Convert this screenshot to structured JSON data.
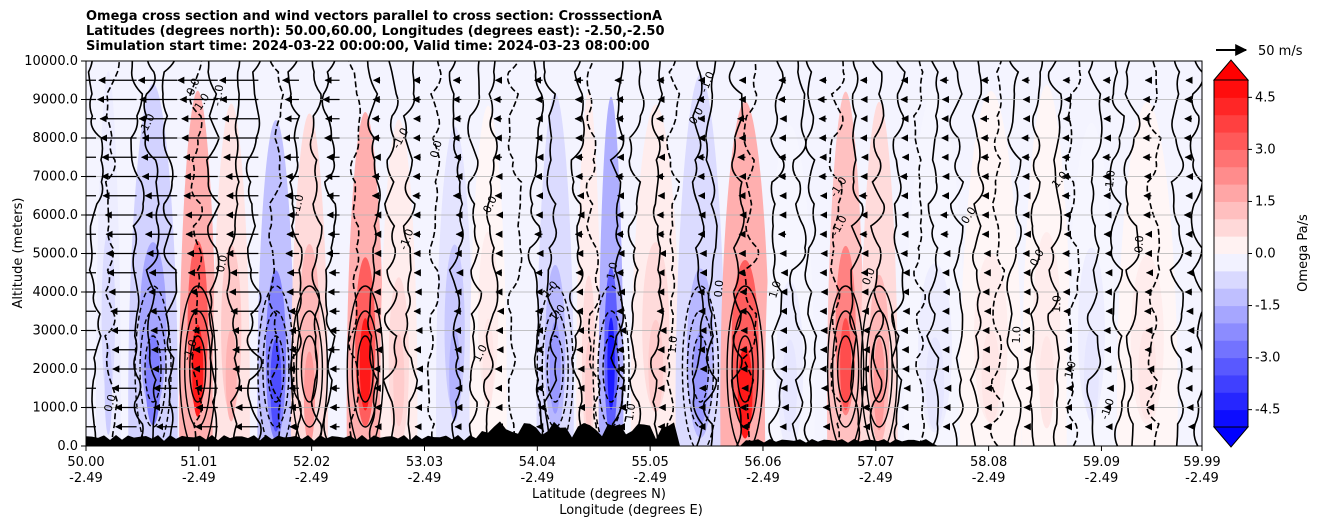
{
  "chart_data": {
    "type": "heatmap",
    "title_lines": [
      "Omega cross section and wind vectors parallel to cross section: CrosssectionA",
      "Latitudes (degrees north): 50.00,60.00, Longitudes (degrees east): -2.50,-2.50",
      "Simulation start time: 2024-03-22 00:00:00, Valid time: 2024-03-23 08:00:00"
    ],
    "xlabel_line1": "Latitude (degrees N)",
    "xlabel_line2": "Longitude (degrees E)",
    "ylabel": "Altitude (meters)",
    "x_ticks": [
      {
        "lat": "50.00",
        "lon": "-2.49",
        "value": 50.0
      },
      {
        "lat": "51.01",
        "lon": "-2.49",
        "value": 51.01
      },
      {
        "lat": "52.02",
        "lon": "-2.49",
        "value": 52.02
      },
      {
        "lat": "53.03",
        "lon": "-2.49",
        "value": 53.03
      },
      {
        "lat": "54.04",
        "lon": "-2.49",
        "value": 54.04
      },
      {
        "lat": "55.05",
        "lon": "-2.49",
        "value": 55.05
      },
      {
        "lat": "56.06",
        "lon": "-2.49",
        "value": 56.06
      },
      {
        "lat": "57.07",
        "lon": "-2.49",
        "value": 57.07
      },
      {
        "lat": "58.08",
        "lon": "-2.49",
        "value": 58.08
      },
      {
        "lat": "59.09",
        "lon": "-2.49",
        "value": 59.09
      },
      {
        "lat": "59.99",
        "lon": "-2.49",
        "value": 59.99
      }
    ],
    "y_ticks": [
      "0.0",
      "1000.0",
      "2000.0",
      "3000.0",
      "4000.0",
      "5000.0",
      "6000.0",
      "7000.0",
      "8000.0",
      "9000.0",
      "10000.0"
    ],
    "xlim": [
      50.0,
      59.99
    ],
    "ylim": [
      0,
      10000
    ],
    "grid": "horizontal",
    "colorbar": {
      "label": "Omega Pa/s",
      "ticks": [
        "4.5",
        "3.0",
        "1.5",
        "0.0",
        "-1.5",
        "-3.0",
        "-4.5"
      ],
      "range": [
        -5.0,
        5.0
      ],
      "colormap": "bwr",
      "extend": "both"
    },
    "vector_key": {
      "label": "50 m/s"
    },
    "contour_labels": [
      "1.0",
      "-1.0",
      "0.0"
    ],
    "omega_bands": [
      {
        "lat": 50.2,
        "omega": -1.0
      },
      {
        "lat": 50.6,
        "omega": -2.5
      },
      {
        "lat": 51.0,
        "omega": 4.5
      },
      {
        "lat": 51.3,
        "omega": 1.5
      },
      {
        "lat": 51.7,
        "omega": -3.5
      },
      {
        "lat": 52.0,
        "omega": 2.0
      },
      {
        "lat": 52.5,
        "omega": 4.5
      },
      {
        "lat": 52.8,
        "omega": 1.0
      },
      {
        "lat": 53.3,
        "omega": -1.5
      },
      {
        "lat": 53.6,
        "omega": 0.5
      },
      {
        "lat": 54.2,
        "omega": -2.0
      },
      {
        "lat": 54.5,
        "omega": 1.0
      },
      {
        "lat": 54.7,
        "omega": -4.5
      },
      {
        "lat": 55.1,
        "omega": 1.0
      },
      {
        "lat": 55.5,
        "omega": -2.0
      },
      {
        "lat": 55.9,
        "omega": 4.5
      },
      {
        "lat": 56.3,
        "omega": -0.5
      },
      {
        "lat": 56.8,
        "omega": 3.5
      },
      {
        "lat": 57.1,
        "omega": 2.0
      },
      {
        "lat": 57.6,
        "omega": -0.5
      },
      {
        "lat": 58.1,
        "omega": 0.5
      },
      {
        "lat": 58.6,
        "omega": 0.5
      },
      {
        "lat": 59.0,
        "omega": -0.5
      },
      {
        "lat": 59.5,
        "omega": 0.5
      }
    ]
  }
}
